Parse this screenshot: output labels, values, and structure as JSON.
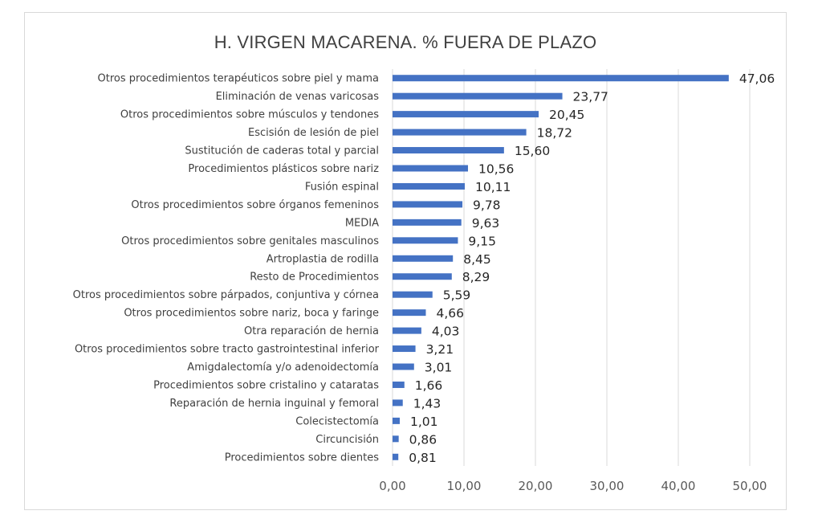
{
  "chart_data": {
    "type": "bar",
    "orientation": "horizontal",
    "title": "H. VIRGEN MACARENA. % FUERA DE PLAZO",
    "xlabel": "",
    "ylabel": "",
    "xlim": [
      0,
      50
    ],
    "x_ticks": [
      "0,00",
      "10,00",
      "20,00",
      "30,00",
      "40,00",
      "50,00"
    ],
    "grid": true,
    "legend": "none",
    "bar_color": "#4472c4",
    "categories": [
      "Otros procedimientos terapéuticos sobre piel y mama",
      "Eliminación de venas varicosas",
      "Otros procedimientos sobre músculos y tendones",
      "Escisión de lesión de piel",
      "Sustitución de caderas total y parcial",
      "Procedimientos plásticos sobre nariz",
      "Fusión espinal",
      "Otros procedimientos sobre órganos femeninos",
      "MEDIA",
      "Otros procedimientos sobre genitales masculinos",
      "Artroplastia de rodilla",
      "Resto de Procedimientos",
      "Otros procedimientos sobre párpados, conjuntiva y córnea",
      "Otros procedimientos sobre nariz, boca y faringe",
      "Otra reparación de hernia",
      "Otros procedimientos sobre tracto gastrointestinal inferior",
      "Amigdalectomía y/o adenoidectomía",
      "Procedimientos sobre cristalino y cataratas",
      "Reparación de hernia inguinal y femoral",
      "Colecistectomía",
      "Circuncisión",
      "Procedimientos sobre dientes"
    ],
    "values": [
      47.06,
      23.77,
      20.45,
      18.72,
      15.6,
      10.56,
      10.11,
      9.78,
      9.63,
      9.15,
      8.45,
      8.29,
      5.59,
      4.66,
      4.03,
      3.21,
      3.01,
      1.66,
      1.43,
      1.01,
      0.86,
      0.81
    ],
    "value_labels": [
      "47,06",
      "23,77",
      "20,45",
      "18,72",
      "15,60",
      "10,56",
      "10,11",
      "9,78",
      "9,63",
      "9,15",
      "8,45",
      "8,29",
      "5,59",
      "4,66",
      "4,03",
      "3,21",
      "3,01",
      "1,66",
      "1,43",
      "1,01",
      "0,86",
      "0,81"
    ]
  }
}
